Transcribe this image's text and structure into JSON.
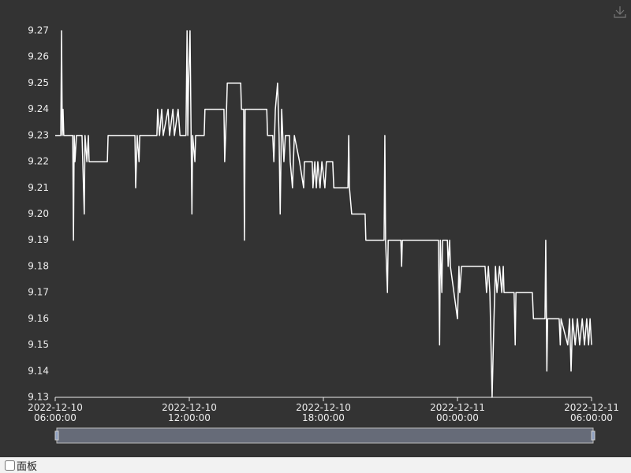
{
  "chart_data": {
    "type": "line",
    "x": [
      "2022-12-10 06:00",
      "2022-12-10 06:15",
      "2022-12-10 06:17",
      "2022-12-10 06:19",
      "2022-12-10 06:21",
      "2022-12-10 06:23",
      "2022-12-10 06:47",
      "2022-12-10 06:49",
      "2022-12-10 06:51",
      "2022-12-10 06:53",
      "2022-12-10 06:57",
      "2022-12-10 07:12",
      "2022-12-10 07:14",
      "2022-12-10 07:18",
      "2022-12-10 07:20",
      "2022-12-10 07:25",
      "2022-12-10 07:29",
      "2022-12-10 07:31",
      "2022-12-10 08:20",
      "2022-12-10 08:22",
      "2022-12-10 09:34",
      "2022-12-10 09:36",
      "2022-12-10 09:40",
      "2022-12-10 09:45",
      "2022-12-10 09:47",
      "2022-12-10 10:33",
      "2022-12-10 10:35",
      "2022-12-10 10:40",
      "2022-12-10 10:46",
      "2022-12-10 10:50",
      "2022-12-10 11:03",
      "2022-12-10 11:07",
      "2022-12-10 11:16",
      "2022-12-10 11:20",
      "2022-12-10 11:30",
      "2022-12-10 11:35",
      "2022-12-10 11:51",
      "2022-12-10 11:54",
      "2022-12-10 11:56",
      "2022-12-10 11:58",
      "2022-12-10 12:02",
      "2022-12-10 12:07",
      "2022-12-10 12:09",
      "2022-12-10 12:15",
      "2022-12-10 12:17",
      "2022-12-10 12:40",
      "2022-12-10 12:42",
      "2022-12-10 13:33",
      "2022-12-10 13:35",
      "2022-12-10 13:40",
      "2022-12-10 13:42",
      "2022-12-10 14:18",
      "2022-12-10 14:20",
      "2022-12-10 14:26",
      "2022-12-10 14:28",
      "2022-12-10 14:30",
      "2022-12-10 15:28",
      "2022-12-10 15:30",
      "2022-12-10 15:44",
      "2022-12-10 15:47",
      "2022-12-10 15:51",
      "2022-12-10 15:57",
      "2022-12-10 16:01",
      "2022-12-10 16:04",
      "2022-12-10 16:08",
      "2022-12-10 16:14",
      "2022-12-10 16:18",
      "2022-12-10 16:29",
      "2022-12-10 16:31",
      "2022-12-10 16:37",
      "2022-12-10 16:42",
      "2022-12-10 16:56",
      "2022-12-10 17:07",
      "2022-12-10 17:09",
      "2022-12-10 17:30",
      "2022-12-10 17:32",
      "2022-12-10 17:37",
      "2022-12-10 17:41",
      "2022-12-10 17:45",
      "2022-12-10 17:51",
      "2022-12-10 17:56",
      "2022-12-10 18:04",
      "2022-12-10 18:08",
      "2022-12-10 18:25",
      "2022-12-10 18:28",
      "2022-12-10 19:06",
      "2022-12-10 19:08",
      "2022-12-10 19:10",
      "2022-12-10 19:16",
      "2022-12-10 19:52",
      "2022-12-10 19:54",
      "2022-12-10 20:43",
      "2022-12-10 20:45",
      "2022-12-10 20:47",
      "2022-12-10 20:52",
      "2022-12-10 20:54",
      "2022-12-10 21:28",
      "2022-12-10 21:30",
      "2022-12-10 21:32",
      "2022-12-10 23:09",
      "2022-12-10 23:12",
      "2022-12-10 23:14",
      "2022-12-10 23:18",
      "2022-12-10 23:20",
      "2022-12-10 23:33",
      "2022-12-10 23:35",
      "2022-12-10 23:39",
      "2022-12-10 23:41",
      "2022-12-11 00:00",
      "2022-12-11 00:04",
      "2022-12-11 00:06",
      "2022-12-11 00:11",
      "2022-12-11 01:14",
      "2022-12-11 01:18",
      "2022-12-11 01:23",
      "2022-12-11 01:27",
      "2022-12-11 01:33",
      "2022-12-11 01:38",
      "2022-12-11 01:42",
      "2022-12-11 01:46",
      "2022-12-11 01:53",
      "2022-12-11 01:59",
      "2022-12-11 02:03",
      "2022-12-11 02:05",
      "2022-12-11 02:32",
      "2022-12-11 02:35",
      "2022-12-11 02:37",
      "2022-12-11 03:21",
      "2022-12-11 03:24",
      "2022-12-11 03:55",
      "2022-12-11 03:57",
      "2022-12-11 04:00",
      "2022-12-11 04:02",
      "2022-12-11 04:33",
      "2022-12-11 04:36",
      "2022-12-11 04:38",
      "2022-12-11 04:56",
      "2022-12-11 05:01",
      "2022-12-11 05:05",
      "2022-12-11 05:09",
      "2022-12-11 05:16",
      "2022-12-11 05:22",
      "2022-12-11 05:28",
      "2022-12-11 05:35",
      "2022-12-11 05:41",
      "2022-12-11 05:47",
      "2022-12-11 05:52",
      "2022-12-11 05:56",
      "2022-12-11 06:00"
    ],
    "series": [
      {
        "color": "#ffffff",
        "values": [
          9.23,
          9.23,
          9.27,
          9.23,
          9.24,
          9.23,
          9.23,
          9.19,
          9.23,
          9.22,
          9.23,
          9.23,
          9.22,
          9.2,
          9.23,
          9.22,
          9.23,
          9.22,
          9.22,
          9.23,
          9.23,
          9.21,
          9.23,
          9.22,
          9.23,
          9.23,
          9.24,
          9.23,
          9.24,
          9.23,
          9.24,
          9.23,
          9.24,
          9.23,
          9.24,
          9.23,
          9.23,
          9.27,
          9.23,
          9.25,
          9.27,
          9.2,
          9.23,
          9.22,
          9.23,
          9.23,
          9.24,
          9.24,
          9.22,
          9.24,
          9.25,
          9.25,
          9.24,
          9.24,
          9.19,
          9.24,
          9.24,
          9.23,
          9.23,
          9.22,
          9.24,
          9.25,
          9.23,
          9.2,
          9.24,
          9.22,
          9.23,
          9.23,
          9.22,
          9.21,
          9.23,
          9.22,
          9.21,
          9.22,
          9.22,
          9.21,
          9.22,
          9.21,
          9.22,
          9.21,
          9.22,
          9.21,
          9.22,
          9.22,
          9.21,
          9.21,
          9.23,
          9.21,
          9.2,
          9.2,
          9.19,
          9.19,
          9.23,
          9.19,
          9.17,
          9.19,
          9.19,
          9.18,
          9.19,
          9.19,
          9.15,
          9.19,
          9.17,
          9.19,
          9.19,
          9.18,
          9.19,
          9.18,
          9.16,
          9.18,
          9.17,
          9.18,
          9.18,
          9.17,
          9.18,
          9.17,
          9.13,
          9.16,
          9.18,
          9.17,
          9.18,
          9.17,
          9.18,
          9.17,
          9.17,
          9.15,
          9.17,
          9.17,
          9.16,
          9.16,
          9.19,
          9.14,
          9.16,
          9.16,
          9.15,
          9.16,
          9.15,
          9.16,
          9.14,
          9.16,
          9.15,
          9.16,
          9.15,
          9.16,
          9.15,
          9.16,
          9.15,
          9.16,
          9.15
        ]
      }
    ],
    "xlim": [
      "2022-12-10 06:00",
      "2022-12-11 06:00"
    ],
    "xticks": [
      {
        "value": "2022-12-10 06:00",
        "label": [
          "2022-12-10",
          "06:00:00"
        ]
      },
      {
        "value": "2022-12-10 12:00",
        "label": [
          "2022-12-10",
          "12:00:00"
        ]
      },
      {
        "value": "2022-12-10 18:00",
        "label": [
          "2022-12-10",
          "18:00:00"
        ]
      },
      {
        "value": "2022-12-11 00:00",
        "label": [
          "2022-12-11",
          "00:00:00"
        ]
      },
      {
        "value": "2022-12-11 06:00",
        "label": [
          "2022-12-11",
          "06:00:00"
        ]
      }
    ],
    "ylim": [
      9.13,
      9.27
    ],
    "yticks": [
      9.13,
      9.14,
      9.15,
      9.16,
      9.17,
      9.18,
      9.19,
      {
        "value": 9.2,
        "label": "9.20"
      },
      9.21,
      9.22,
      9.23,
      9.24,
      9.25,
      9.26,
      9.27
    ],
    "grid": false
  },
  "controls": {
    "checkbox_label": "面板"
  }
}
